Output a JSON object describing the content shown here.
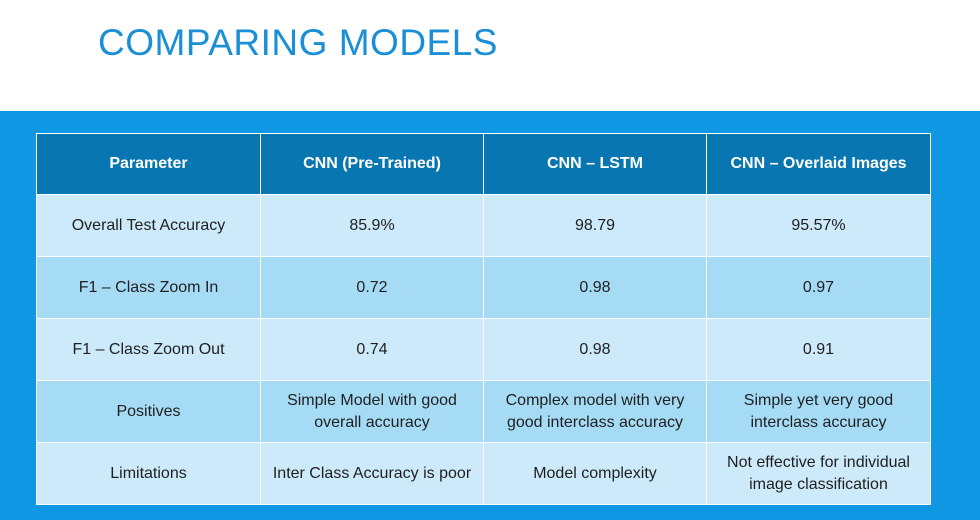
{
  "title": "COMPARING MODELS",
  "table": {
    "headers": [
      "Parameter",
      "CNN (Pre-Trained)",
      "CNN – LSTM",
      "CNN – Overlaid Images"
    ],
    "rows": [
      [
        "Overall Test Accuracy",
        "85.9%",
        "98.79",
        "95.57%"
      ],
      [
        "F1 – Class Zoom In",
        "0.72",
        "0.98",
        "0.97"
      ],
      [
        "F1 – Class Zoom Out",
        "0.74",
        "0.98",
        "0.91"
      ],
      [
        "Positives",
        "Simple Model with good overall accuracy",
        "Complex model with very good interclass accuracy",
        "Simple yet very good interclass accuracy"
      ],
      [
        "Limitations",
        "Inter Class Accuracy is poor",
        "Model complexity",
        "Not effective for individual image classification"
      ]
    ]
  },
  "colors": {
    "title": "#1a8fd6",
    "band": "#0f97e3",
    "header_bg": "#0876b0",
    "row_light": "#cdeafb",
    "row_mid": "#a6dbf6"
  }
}
